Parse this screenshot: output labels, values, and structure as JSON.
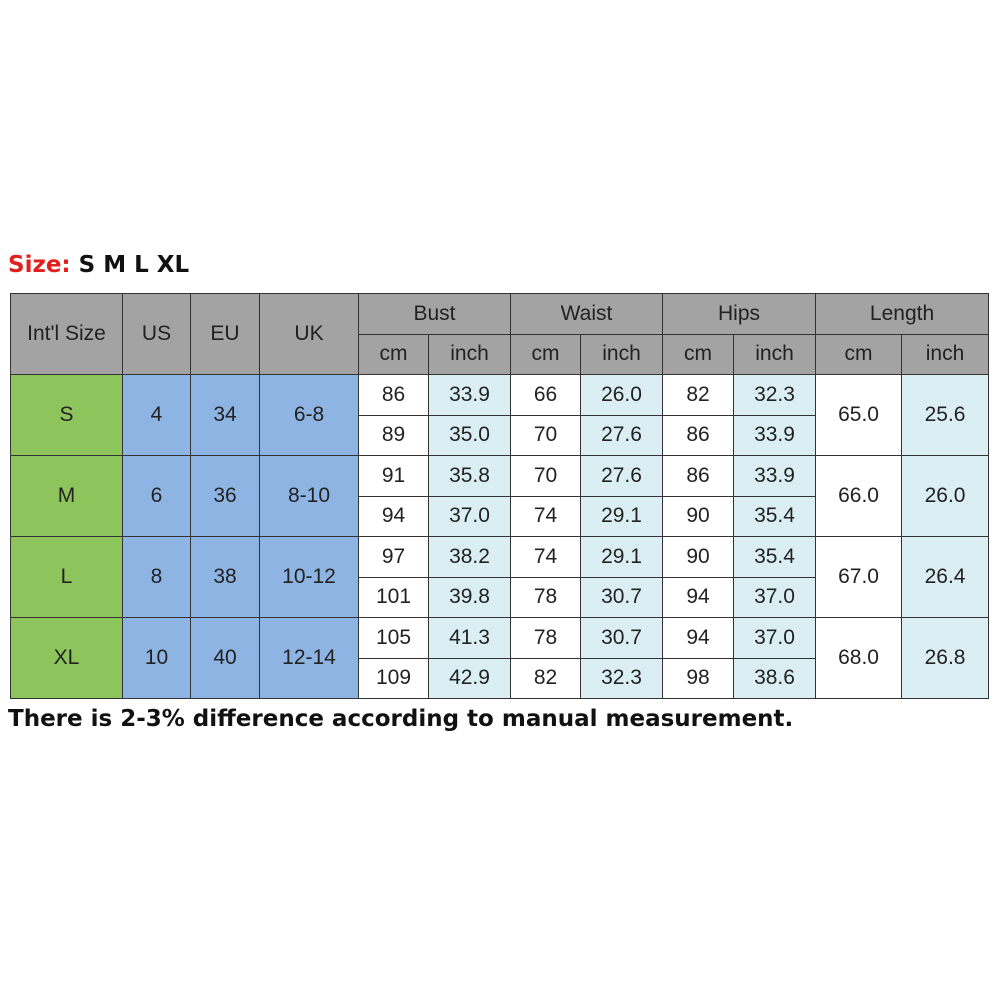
{
  "title": {
    "label": "Size:",
    "sizes": "S M L XL"
  },
  "table": {
    "fixed_headers": [
      "Int'l Size",
      "US",
      "EU",
      "UK"
    ],
    "measure_headers": [
      "Bust",
      "Waist",
      "Hips",
      "Length"
    ],
    "unit_headers": [
      [
        "cm",
        "inch"
      ],
      [
        "cm",
        "inch"
      ],
      [
        "cm",
        "inch"
      ],
      [
        "cm",
        "inch"
      ]
    ],
    "rows": [
      {
        "intl": "S",
        "us": "4",
        "eu": "34",
        "uk": "6-8",
        "lines": [
          [
            "86",
            "33.9",
            "66",
            "26.0",
            "82",
            "32.3"
          ],
          [
            "89",
            "35.0",
            "70",
            "27.6",
            "86",
            "33.9"
          ]
        ],
        "length": [
          "65.0",
          "25.6"
        ]
      },
      {
        "intl": "M",
        "us": "6",
        "eu": "36",
        "uk": "8-10",
        "lines": [
          [
            "91",
            "35.8",
            "70",
            "27.6",
            "86",
            "33.9"
          ],
          [
            "94",
            "37.0",
            "74",
            "29.1",
            "90",
            "35.4"
          ]
        ],
        "length": [
          "66.0",
          "26.0"
        ]
      },
      {
        "intl": "L",
        "us": "8",
        "eu": "38",
        "uk": "10-12",
        "lines": [
          [
            "97",
            "38.2",
            "74",
            "29.1",
            "90",
            "35.4"
          ],
          [
            "101",
            "39.8",
            "78",
            "30.7",
            "94",
            "37.0"
          ]
        ],
        "length": [
          "67.0",
          "26.4"
        ]
      },
      {
        "intl": "XL",
        "us": "10",
        "eu": "40",
        "uk": "12-14",
        "lines": [
          [
            "105",
            "41.3",
            "78",
            "30.7",
            "94",
            "37.0"
          ],
          [
            "109",
            "42.9",
            "82",
            "32.3",
            "98",
            "38.6"
          ]
        ],
        "length": [
          "68.0",
          "26.8"
        ]
      }
    ]
  },
  "footnote": "There is 2-3% difference according to manual measurement."
}
